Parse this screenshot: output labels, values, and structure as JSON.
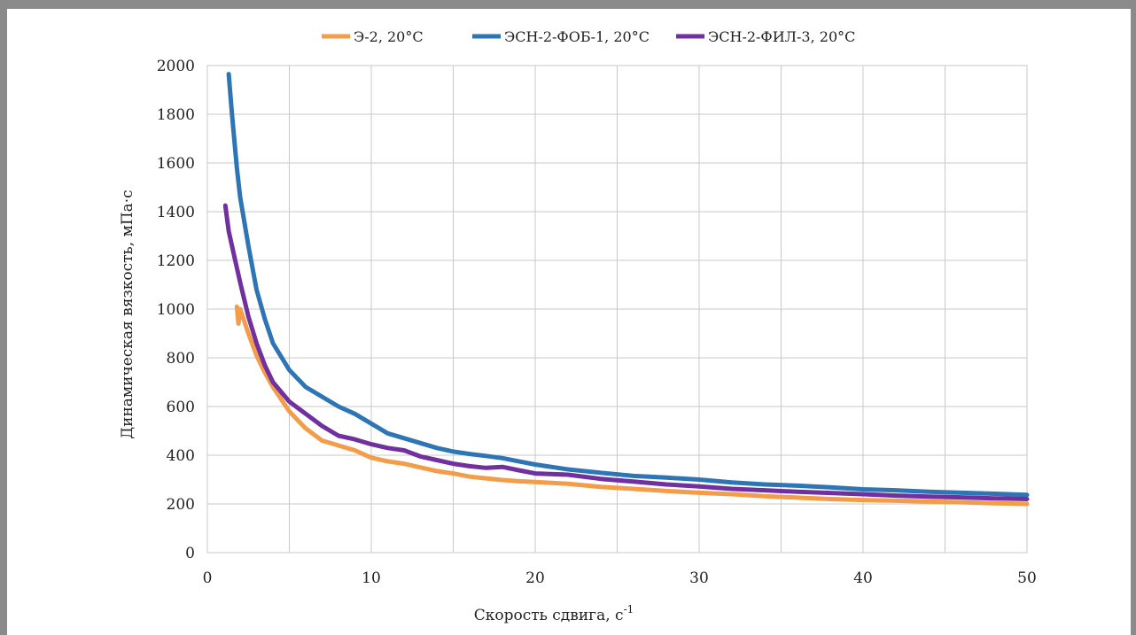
{
  "chart_data": {
    "type": "line",
    "xlabel_main": "Скорость сдвига, с",
    "xlabel_sup": "-1",
    "ylabel": "Динамическая вязкость, мПа·с",
    "xlim": [
      0,
      50
    ],
    "ylim": [
      0,
      2000
    ],
    "xticks": [
      0,
      10,
      20,
      30,
      40,
      50
    ],
    "yticks": [
      0,
      200,
      400,
      600,
      800,
      1000,
      1200,
      1400,
      1600,
      1800,
      2000
    ],
    "grid": true,
    "legend_position": "top",
    "series": [
      {
        "name": "Э-2, 20°C",
        "color": "#f39c4a",
        "points": [
          [
            1.8,
            1010
          ],
          [
            1.9,
            940
          ],
          [
            2.0,
            1000
          ],
          [
            2.5,
            900
          ],
          [
            3,
            810
          ],
          [
            3.5,
            740
          ],
          [
            4,
            680
          ],
          [
            5,
            580
          ],
          [
            6,
            510
          ],
          [
            7,
            460
          ],
          [
            8,
            440
          ],
          [
            9,
            420
          ],
          [
            10,
            390
          ],
          [
            11,
            375
          ],
          [
            12,
            365
          ],
          [
            13,
            350
          ],
          [
            14,
            335
          ],
          [
            15,
            325
          ],
          [
            16,
            312
          ],
          [
            17,
            305
          ],
          [
            18,
            298
          ],
          [
            19,
            293
          ],
          [
            20,
            290
          ],
          [
            22,
            283
          ],
          [
            24,
            270
          ],
          [
            26,
            262
          ],
          [
            28,
            253
          ],
          [
            30,
            246
          ],
          [
            32,
            240
          ],
          [
            34,
            232
          ],
          [
            36,
            226
          ],
          [
            38,
            220
          ],
          [
            40,
            216
          ],
          [
            42,
            213
          ],
          [
            44,
            210
          ],
          [
            46,
            207
          ],
          [
            48,
            203
          ],
          [
            50,
            200
          ]
        ]
      },
      {
        "name": "ЭСН-2-ФОБ-1, 20°C",
        "color": "#2e75b6",
        "points": [
          [
            1.3,
            1965
          ],
          [
            1.5,
            1800
          ],
          [
            1.8,
            1580
          ],
          [
            2.0,
            1460
          ],
          [
            2.5,
            1260
          ],
          [
            3,
            1080
          ],
          [
            3.5,
            960
          ],
          [
            4,
            860
          ],
          [
            5,
            750
          ],
          [
            6,
            680
          ],
          [
            7,
            640
          ],
          [
            8,
            600
          ],
          [
            9,
            570
          ],
          [
            10,
            530
          ],
          [
            11,
            490
          ],
          [
            12,
            470
          ],
          [
            13,
            450
          ],
          [
            14,
            430
          ],
          [
            15,
            415
          ],
          [
            16,
            405
          ],
          [
            17,
            397
          ],
          [
            18,
            388
          ],
          [
            19,
            375
          ],
          [
            20,
            362
          ],
          [
            22,
            342
          ],
          [
            24,
            328
          ],
          [
            26,
            315
          ],
          [
            28,
            308
          ],
          [
            30,
            300
          ],
          [
            32,
            288
          ],
          [
            34,
            280
          ],
          [
            36,
            275
          ],
          [
            38,
            268
          ],
          [
            40,
            260
          ],
          [
            42,
            256
          ],
          [
            44,
            250
          ],
          [
            46,
            246
          ],
          [
            48,
            242
          ],
          [
            50,
            237
          ]
        ]
      },
      {
        "name": "ЭСН-2-ФИЛ-3, 20°C",
        "color": "#7030a0",
        "points": [
          [
            1.1,
            1425
          ],
          [
            1.3,
            1320
          ],
          [
            1.6,
            1230
          ],
          [
            2.0,
            1110
          ],
          [
            2.5,
            970
          ],
          [
            3,
            860
          ],
          [
            3.5,
            770
          ],
          [
            4,
            700
          ],
          [
            5,
            620
          ],
          [
            6,
            570
          ],
          [
            7,
            520
          ],
          [
            8,
            480
          ],
          [
            9,
            465
          ],
          [
            10,
            445
          ],
          [
            11,
            430
          ],
          [
            12,
            420
          ],
          [
            13,
            395
          ],
          [
            14,
            380
          ],
          [
            15,
            365
          ],
          [
            16,
            355
          ],
          [
            17,
            348
          ],
          [
            18,
            352
          ],
          [
            19,
            338
          ],
          [
            20,
            325
          ],
          [
            22,
            320
          ],
          [
            24,
            303
          ],
          [
            26,
            292
          ],
          [
            28,
            280
          ],
          [
            30,
            272
          ],
          [
            32,
            262
          ],
          [
            34,
            256
          ],
          [
            36,
            250
          ],
          [
            38,
            245
          ],
          [
            40,
            240
          ],
          [
            42,
            234
          ],
          [
            44,
            230
          ],
          [
            46,
            227
          ],
          [
            48,
            223
          ],
          [
            50,
            220
          ]
        ]
      }
    ]
  }
}
